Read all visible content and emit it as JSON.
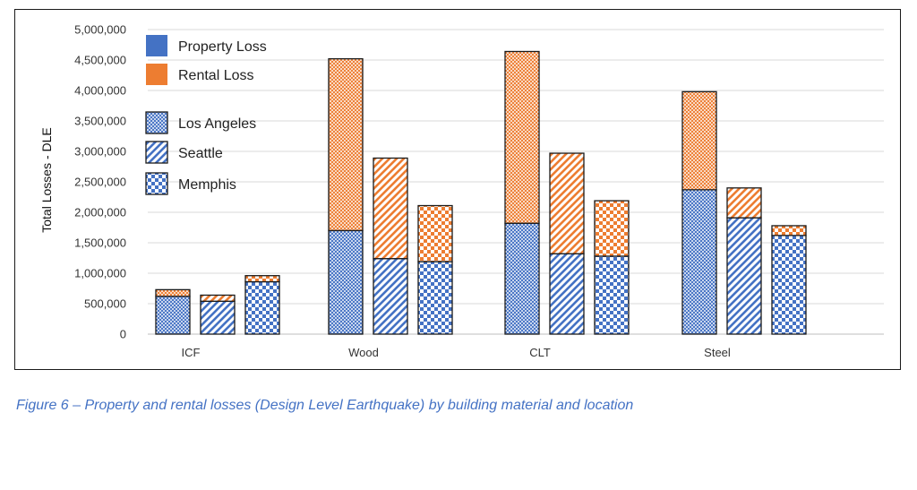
{
  "chart_data": {
    "type": "bar",
    "stacked": true,
    "categories": [
      "ICF",
      "Wood",
      "CLT",
      "Steel"
    ],
    "locations": [
      "Los Angeles",
      "Seattle",
      "Memphis"
    ],
    "ylabel": "Total Losses - DLE",
    "ylim": [
      0,
      5000000
    ],
    "yticks": [
      "0",
      "500,000",
      "1,000,000",
      "1,500,000",
      "2,000,000",
      "2,500,000",
      "3,000,000",
      "3,500,000",
      "4,000,000",
      "4,500,000",
      "5,000,000"
    ],
    "ytick_values": [
      0,
      500000,
      1000000,
      1500000,
      2000000,
      2500000,
      3000000,
      3500000,
      4000000,
      4500000,
      5000000
    ],
    "grid": true,
    "series": [
      {
        "name": "Property Loss",
        "color": "#4472c4",
        "values": {
          "Los Angeles": [
            620000,
            1700000,
            1820000,
            2370000
          ],
          "Seattle": [
            540000,
            1240000,
            1320000,
            1910000
          ],
          "Memphis": [
            860000,
            1190000,
            1280000,
            1620000
          ]
        }
      },
      {
        "name": "Rental Loss",
        "color": "#ed7d31",
        "values": {
          "Los Angeles": [
            110000,
            2820000,
            2820000,
            1610000
          ],
          "Seattle": [
            100000,
            1650000,
            1650000,
            490000
          ],
          "Memphis": [
            100000,
            920000,
            910000,
            160000
          ]
        }
      }
    ],
    "legend": {
      "placement": "top-left",
      "entries": [
        "Property Loss",
        "Rental Loss",
        "Los Angeles",
        "Seattle",
        "Memphis"
      ]
    }
  },
  "caption": "Figure 6 – Property and rental losses (Design Level Earthquake) by building material and location"
}
